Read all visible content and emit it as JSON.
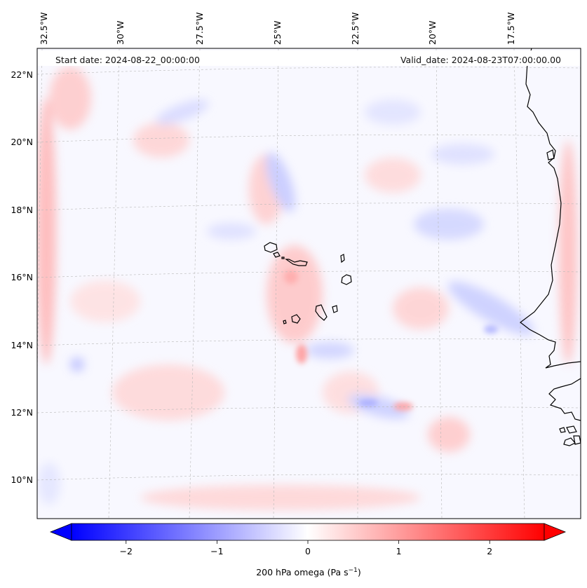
{
  "map": {
    "start_label": "Start date: 2024-08-22_00:00:00",
    "valid_label": "Valid_date: 2024-08-23T07:00:00.00",
    "lon_labels": [
      "32.5°W",
      "30°W",
      "27.5°W",
      "25°W",
      "22.5°W",
      "20°W",
      "17.5°W"
    ],
    "lat_labels": [
      "22°N",
      "20°N",
      "18°N",
      "16°N",
      "14°N",
      "12°N",
      "10°N"
    ],
    "field": "200 hPa omega",
    "colors": {
      "negative": "#0000ff",
      "zero": "#ffffff",
      "positive": "#ff0000",
      "coast": "#000000",
      "grid": "#b0b0b0"
    }
  },
  "colorbar": {
    "ticks": [
      "−2",
      "−1",
      "0",
      "1",
      "2"
    ],
    "range": [
      -2.6,
      2.6
    ],
    "label_main": "200 hPa omega (Pa s",
    "label_exp": "−1",
    "label_close": ")"
  }
}
